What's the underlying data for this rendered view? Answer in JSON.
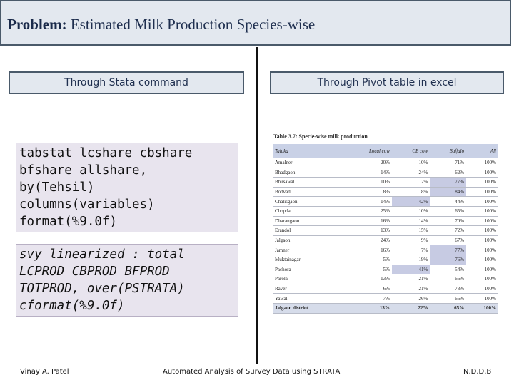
{
  "title": {
    "label": "Problem:",
    "text": " Estimated Milk Production Species-wise"
  },
  "left_header": "Through Stata command",
  "right_header": "Through Pivot table in excel",
  "code_blocks": [
    {
      "text": "tabstat lcshare cbshare\nbfshare allshare,\nby(Tehsil)\ncolumns(variables)\nformat(%9.0f)"
    },
    {
      "text": "svy linearized : total\nLCPROD CBPROD BFPROD\nTOTPROD, over(PSTRATA)\ncformat(%9.0f)"
    }
  ],
  "table": {
    "caption": "Table 3.7: Specie-wise milk production",
    "headers": [
      "Taluka",
      "Local cow",
      "CB cow",
      "Buffalo",
      "All"
    ],
    "rows": [
      [
        "Amalner",
        "20%",
        "10%",
        "71%",
        "100%"
      ],
      [
        "Bhadgaon",
        "14%",
        "24%",
        "62%",
        "100%"
      ],
      [
        "Bhusawal",
        "10%",
        "12%",
        "77%",
        "100%"
      ],
      [
        "Bodvad",
        "8%",
        "8%",
        "84%",
        "100%"
      ],
      [
        "Chalisgaon",
        "14%",
        "42%",
        "44%",
        "100%"
      ],
      [
        "Chopda",
        "25%",
        "10%",
        "65%",
        "100%"
      ],
      [
        "Dharangaon",
        "16%",
        "14%",
        "70%",
        "100%"
      ],
      [
        "Erandol",
        "13%",
        "15%",
        "72%",
        "100%"
      ],
      [
        "Jalgaon",
        "24%",
        "9%",
        "67%",
        "100%"
      ],
      [
        "Jamner",
        "16%",
        "7%",
        "77%",
        "100%"
      ],
      [
        "Muktainagar",
        "5%",
        "19%",
        "76%",
        "100%"
      ],
      [
        "Pachora",
        "5%",
        "41%",
        "54%",
        "100%"
      ],
      [
        "Parola",
        "13%",
        "21%",
        "66%",
        "100%"
      ],
      [
        "Raver",
        "6%",
        "21%",
        "73%",
        "100%"
      ],
      [
        "Yawal",
        "7%",
        "26%",
        "66%",
        "100%"
      ]
    ],
    "highlights": [
      [
        2,
        3
      ],
      [
        3,
        3
      ],
      [
        4,
        2
      ],
      [
        9,
        3
      ],
      [
        10,
        3
      ],
      [
        11,
        2
      ]
    ],
    "total": [
      "Jalgaon district",
      "13%",
      "22%",
      "65%",
      "100%"
    ]
  },
  "footer": {
    "left": "Vinay A. Patel",
    "center": "Automated Analysis of Survey Data using STRATA",
    "right": "N.D.D.B"
  }
}
